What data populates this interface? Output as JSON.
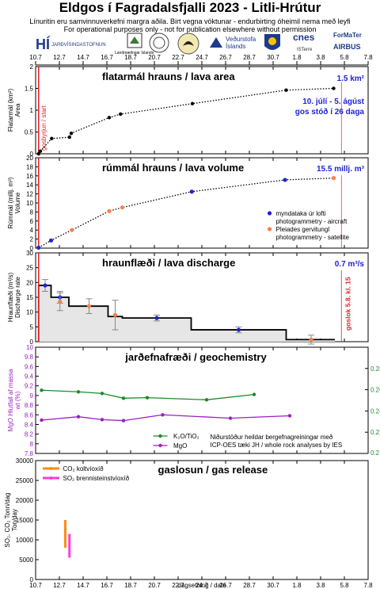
{
  "header": {
    "title": "Eldgos í Fagradalsfjalli 2023 - Litli-Hrútur",
    "subtitle_is": "Línuritin eru samvinnuverkefni margra aðila.  Birt vegna vöktunar - endurbirting óheimil nema með leyfi",
    "subtitle_en": "For operational purposes only - not for publication elsewhere without permission"
  },
  "logos": [
    "HÍ",
    "JARÐVÍSINDASTOFNUN",
    "Landmælingar Íslands",
    "Veðurstofa Íslands",
    "cnes",
    "ForMaTer",
    "AIRBUS",
    "ISTerre"
  ],
  "colors": {
    "black": "#000000",
    "blue": "#1f24d6",
    "orange": "#f5814a",
    "red": "#e8202a",
    "green": "#1a8c2a",
    "purple": "#9b1fc4",
    "magenta": "#ff3cd6",
    "gasorange": "#ff8a18",
    "fill": "#e6e6e6"
  },
  "x_axis": {
    "ticks": [
      "10.7",
      "12.7",
      "14.7",
      "16.7",
      "18.7",
      "20.7",
      "22.7",
      "24.7",
      "26.7",
      "28.7",
      "30.7",
      "1.8",
      "3.8",
      "5.8",
      "7.8"
    ],
    "xlabel": "dagsetning / date"
  },
  "chart_data": [
    {
      "type": "line",
      "id": "area",
      "title": "flatarmál hrauns / lava area",
      "ylabel": [
        "Flatarmál (km²)",
        "Area"
      ],
      "ylim": [
        0,
        2
      ],
      "yticks": [
        "0",
        "0.5",
        "1",
        "1.5",
        "2"
      ],
      "current_value": "1.5 km²",
      "annotation": [
        "10. júlí - 5. ágúst",
        "gos stóð í 26 daga"
      ],
      "start_label": "gosbyrjun / start",
      "start_x": 10.95,
      "end_x": 36.45,
      "x": [
        10.95,
        11.1,
        12.05,
        13.55,
        13.7,
        16.9,
        17.85,
        23.9,
        31.8,
        35.8
      ],
      "y": [
        0.0,
        0.06,
        0.35,
        0.38,
        0.47,
        0.83,
        0.91,
        1.15,
        1.46,
        1.5
      ]
    },
    {
      "type": "line",
      "id": "volume",
      "title": "rúmmál hrauns / lava volume",
      "ylabel": [
        "Rúmmál (millj. m³)",
        "Volume"
      ],
      "ylim": [
        0,
        20
      ],
      "yticks": [
        "0",
        "2",
        "4",
        "6",
        "8",
        "10",
        "12",
        "14",
        "16",
        "18",
        "20"
      ],
      "current_value": "15.5 millj. m³",
      "line": {
        "x": [
          10.95,
          12.0,
          13.75,
          16.9,
          18.0,
          23.85,
          31.7,
          35.8
        ],
        "y": [
          0.1,
          1.7,
          4.0,
          8.2,
          9.0,
          12.5,
          15.1,
          15.5
        ]
      },
      "series": [
        {
          "name": "myndataka úr lofti photogrammetry - aircraft",
          "name_lines": [
            "myndataka úr lofti",
            "photogrammetry - aircraft"
          ],
          "color": "#1f24d6",
          "x": [
            10.95,
            12.0,
            23.85,
            31.7
          ],
          "y": [
            0.1,
            1.7,
            12.5,
            15.1
          ]
        },
        {
          "name": "Pleiades gervitungl photogrammetry - satellite",
          "name_lines": [
            "Pleiades gervitungl",
            "photogrammetry - satellite"
          ],
          "color": "#f5814a",
          "x": [
            13.75,
            16.9,
            18.0,
            35.8
          ],
          "y": [
            4.0,
            8.2,
            9.0,
            15.5
          ]
        }
      ]
    },
    {
      "type": "area",
      "id": "discharge",
      "title": "hraunflæði / lava discharge",
      "ylabel": [
        "Hraunflæði (m³/s)",
        "Discharge rate"
      ],
      "ylim": [
        0,
        30
      ],
      "yticks": [
        "0",
        "5",
        "10",
        "15",
        "20",
        "25",
        "30"
      ],
      "current_value": "0.7 m³/s",
      "end_label": "goslok 5.8. kl. 15",
      "steps": [
        {
          "x0": 10.95,
          "x1": 12.0,
          "y": 19
        },
        {
          "x0": 12.0,
          "x1": 13.5,
          "y": 15
        },
        {
          "x0": 13.5,
          "x1": 16.8,
          "y": 12
        },
        {
          "x0": 16.8,
          "x1": 18.0,
          "y": 8.5
        },
        {
          "x0": 18.0,
          "x1": 23.8,
          "y": 8
        },
        {
          "x0": 23.8,
          "x1": 31.8,
          "y": 4
        },
        {
          "x0": 31.8,
          "x1": 35.9,
          "y": 0.7
        }
      ],
      "series": [
        {
          "name": "aircraft",
          "color": "#1f24d6",
          "x": [
            11.5,
            12.75,
            20.9,
            27.8
          ],
          "y": [
            19,
            15,
            8,
            4
          ],
          "err": [
            2,
            2,
            1,
            1
          ]
        },
        {
          "name": "satellite",
          "color": "#f5814a",
          "x": [
            12.75,
            15.2,
            17.4,
            33.9
          ],
          "y": [
            13.5,
            12,
            9,
            0.7
          ],
          "err": [
            3,
            2.5,
            5,
            1.5
          ]
        }
      ]
    },
    {
      "type": "line",
      "id": "geochem",
      "title": "jarðefnafræði / geochemistry",
      "ylabel_left": [
        "MgO Hlutfall af massa",
        "wt (%)"
      ],
      "ylabel_right": "K2O/TiO2",
      "ylim_left": [
        7.8,
        10
      ],
      "yticks_left": [
        "7.8",
        "8",
        "8.2",
        "8.4",
        "8.6",
        "8.8",
        "9",
        "9.2",
        "9.4",
        "9.6",
        "9.8",
        "10"
      ],
      "ylim_right": [
        0.2,
        0.3
      ],
      "yticks_right": [
        "0.22",
        "0.24",
        "0.26",
        "0.28"
      ],
      "note": [
        "Niðurstöður heildar bergefnagreiningar með",
        "ICP-OES tæki JH / whole rock analyses by IES"
      ],
      "series": [
        {
          "name": "K₂O/TiO₂",
          "color": "#1a8c2a",
          "axis": "right",
          "x": [
            11.2,
            14.3,
            16.3,
            18.1,
            20.1,
            25.1,
            29.1
          ],
          "y": [
            0.2595,
            0.258,
            0.2565,
            0.252,
            0.2525,
            0.2505,
            0.2555
          ]
        },
        {
          "name": "MgO",
          "color": "#9b1fc4",
          "axis": "left",
          "x": [
            11.2,
            14.3,
            16.3,
            18.1,
            21.4,
            27.1,
            32.1
          ],
          "y": [
            8.49,
            8.56,
            8.5,
            8.48,
            8.6,
            8.53,
            8.58
          ]
        }
      ]
    },
    {
      "type": "bar",
      "id": "gas",
      "title": "gaslosun / gas release",
      "ylabel": [
        "SO₂, CO₂ Tonn/dag",
        "Ton/day"
      ],
      "ylim": [
        0,
        30000
      ],
      "yticks": [
        "0",
        "5000",
        "10000",
        "15000",
        "20000",
        "25000",
        "30000"
      ],
      "series": [
        {
          "name": "CO₂ koltvíoxíð",
          "color": "#ff8a18",
          "x": 13.2,
          "low": 8000,
          "high": 15000
        },
        {
          "name": "SO₂ brennisteinstvíoxíð",
          "color": "#ff3cd6",
          "x": 13.55,
          "low": 5500,
          "high": 11500
        }
      ]
    }
  ]
}
